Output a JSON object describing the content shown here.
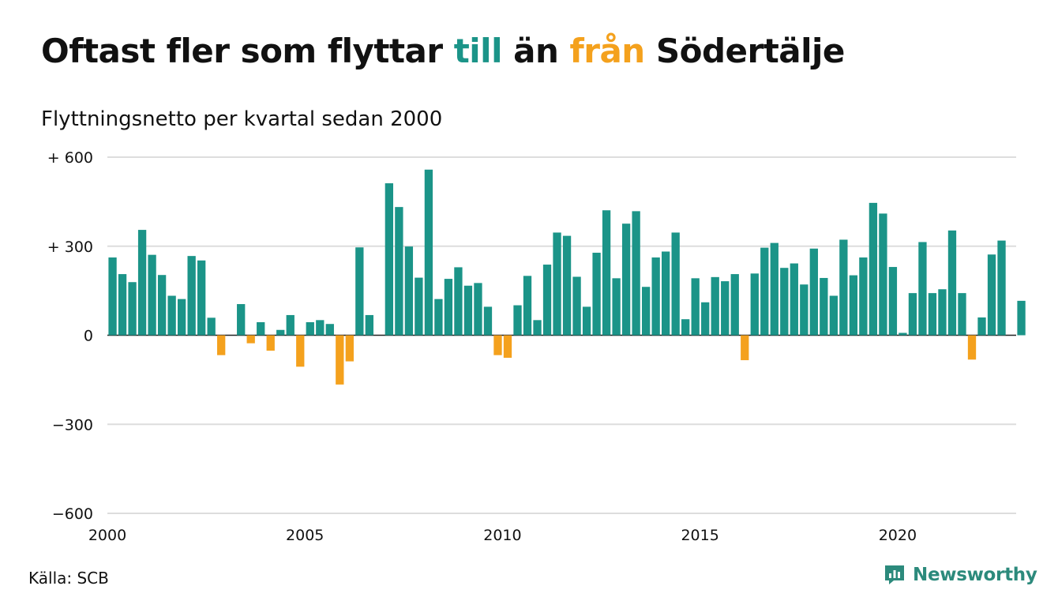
{
  "title": {
    "part1": "Oftast fler som flyttar ",
    "till": "till",
    "part2": " än ",
    "fran": "från",
    "part3": " Södertälje"
  },
  "subtitle": "Flyttningsnetto per kvartal sedan 2000",
  "source": "Källa: SCB",
  "brand": "Newsworthy",
  "colors": {
    "positive": "#1b9488",
    "negative": "#f4a11d",
    "grid": "#dddddd",
    "brand": "#2c8a7c"
  },
  "chart_data": {
    "type": "bar",
    "title": "Oftast fler som flyttar till än från Södertälje",
    "subtitle": "Flyttningsnetto per kvartal sedan 2000",
    "xlabel": "",
    "ylabel": "",
    "ylim": [
      -600,
      600
    ],
    "xlim": [
      2000,
      2023
    ],
    "grid": true,
    "legend": "none",
    "y_ticks": [
      {
        "value": 600,
        "label": "+ 600"
      },
      {
        "value": 300,
        "label": "+ 300"
      },
      {
        "value": 0,
        "label": "0"
      },
      {
        "value": -300,
        "label": "−300"
      },
      {
        "value": -600,
        "label": "−600"
      }
    ],
    "x_ticks": [
      {
        "value": 2000,
        "label": "2000"
      },
      {
        "value": 2005,
        "label": "2005"
      },
      {
        "value": 2010,
        "label": "2010"
      },
      {
        "value": 2015,
        "label": "2015"
      },
      {
        "value": 2020,
        "label": "2020"
      }
    ],
    "categories": [
      "2000 K1",
      "2000 K2",
      "2000 K3",
      "2000 K4",
      "2001 K1",
      "2001 K2",
      "2001 K3",
      "2001 K4",
      "2002 K1",
      "2002 K2",
      "2002 K3",
      "2002 K4",
      "2003 K1",
      "2003 K2",
      "2003 K3",
      "2003 K4",
      "2004 K1",
      "2004 K2",
      "2004 K3",
      "2004 K4",
      "2005 K1",
      "2005 K2",
      "2005 K3",
      "2005 K4",
      "2006 K1",
      "2006 K2",
      "2006 K3",
      "2006 K4",
      "2007 K1",
      "2007 K2",
      "2007 K3",
      "2007 K4",
      "2008 K1",
      "2008 K2",
      "2008 K3",
      "2008 K4",
      "2009 K1",
      "2009 K2",
      "2009 K3",
      "2009 K4",
      "2010 K1",
      "2010 K2",
      "2010 K3",
      "2010 K4",
      "2011 K1",
      "2011 K2",
      "2011 K3",
      "2011 K4",
      "2012 K1",
      "2012 K2",
      "2012 K3",
      "2012 K4",
      "2013 K1",
      "2013 K2",
      "2013 K3",
      "2013 K4",
      "2014 K1",
      "2014 K2",
      "2014 K3",
      "2014 K4",
      "2015 K1",
      "2015 K2",
      "2015 K3",
      "2015 K4",
      "2016 K1",
      "2016 K2",
      "2016 K3",
      "2016 K4",
      "2017 K1",
      "2017 K2",
      "2017 K3",
      "2017 K4",
      "2018 K1",
      "2018 K2",
      "2018 K3",
      "2018 K4",
      "2019 K1",
      "2019 K2",
      "2019 K3",
      "2019 K4",
      "2020 K1",
      "2020 K2",
      "2020 K3",
      "2020 K4",
      "2021 K1",
      "2021 K2",
      "2021 K3",
      "2021 K4",
      "2022 K1",
      "2022 K2",
      "2022 K3",
      "2022 K4",
      "2023 K1"
    ],
    "values": [
      262,
      206,
      179,
      355,
      271,
      203,
      133,
      122,
      267,
      252,
      59,
      -67,
      0,
      105,
      -27,
      44,
      -52,
      18,
      68,
      -106,
      44,
      51,
      38,
      -166,
      -88,
      296,
      68,
      0,
      512,
      432,
      299,
      194,
      558,
      122,
      190,
      229,
      167,
      176,
      96,
      -67,
      -76,
      101,
      200,
      51,
      238,
      346,
      335,
      197,
      96,
      278,
      421,
      192,
      376,
      418,
      163,
      262,
      282,
      346,
      54,
      192,
      111,
      196,
      182,
      206,
      -84,
      208,
      295,
      311,
      227,
      242,
      171,
      292,
      193,
      133,
      322,
      202,
      262,
      446,
      410,
      230,
      8,
      142,
      314,
      142,
      155,
      353,
      142,
      -82,
      60,
      272,
      319,
      0,
      116
    ]
  }
}
